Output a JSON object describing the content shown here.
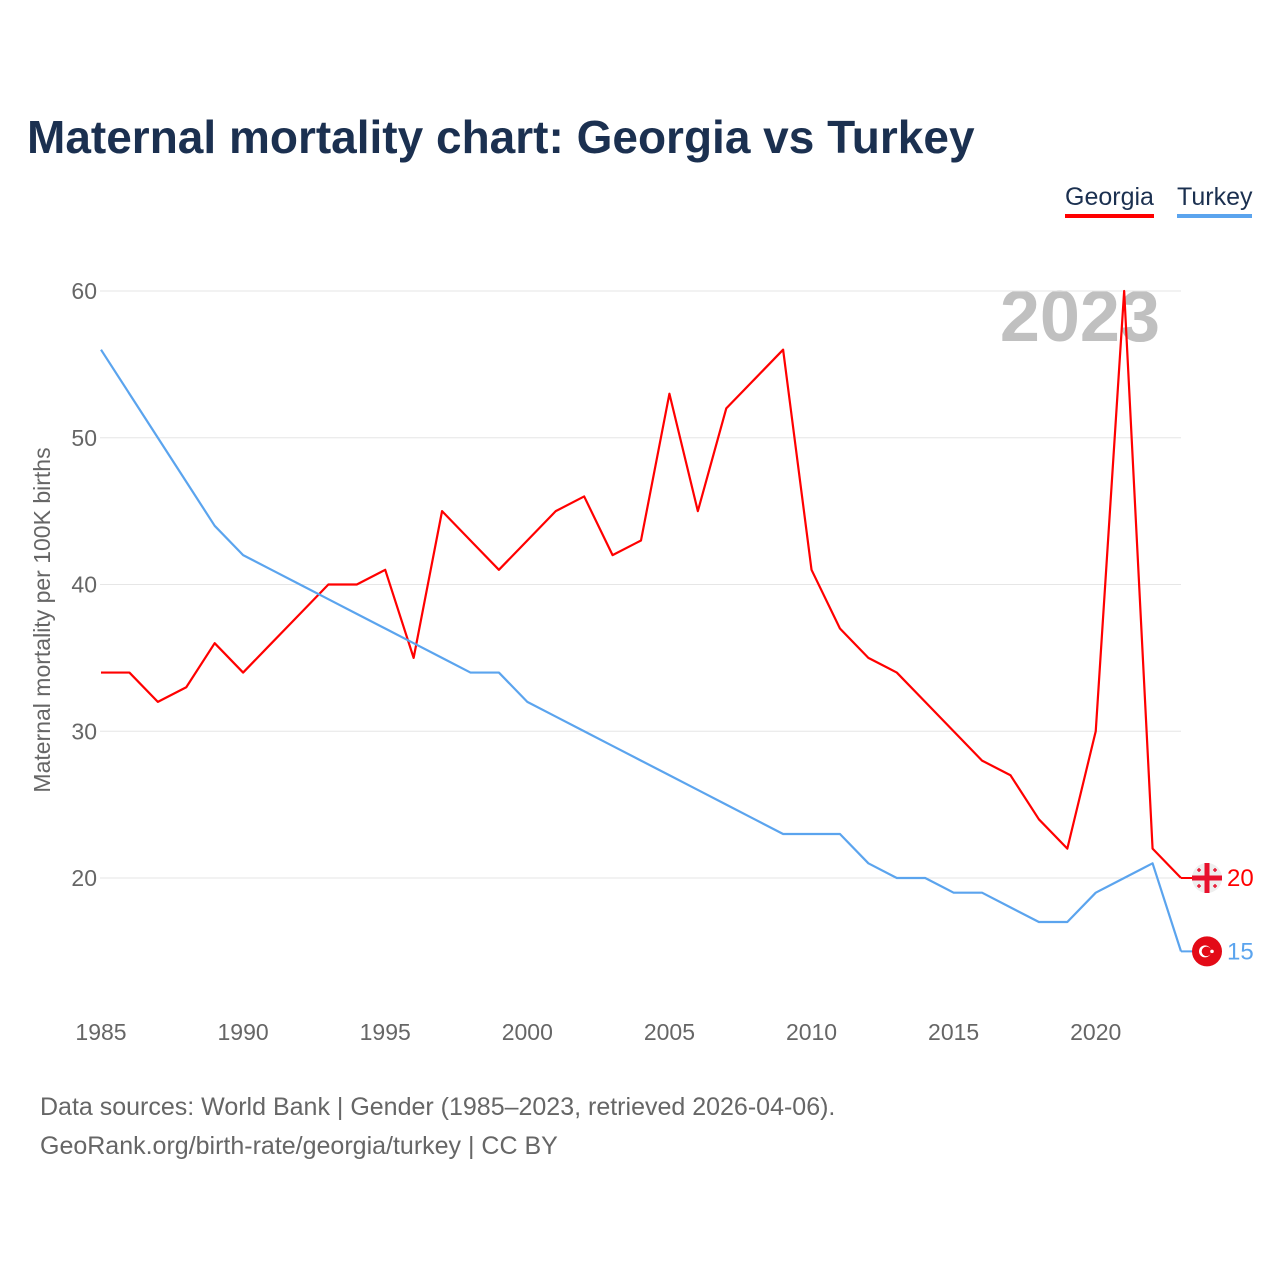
{
  "chart_data": {
    "type": "line",
    "title": "Maternal mortality chart: Georgia vs Turkey",
    "ylabel": "Maternal mortality per 100K births",
    "xlabel": "",
    "ylim": [
      20,
      60
    ],
    "yticks": [
      20,
      30,
      40,
      50,
      60
    ],
    "xticks": [
      1985,
      1990,
      1995,
      2000,
      2005,
      2010,
      2015,
      2020
    ],
    "year_label": "2023",
    "x": [
      1985,
      1986,
      1987,
      1988,
      1989,
      1990,
      1991,
      1992,
      1993,
      1994,
      1995,
      1996,
      1997,
      1998,
      1999,
      2000,
      2001,
      2002,
      2003,
      2004,
      2005,
      2006,
      2007,
      2008,
      2009,
      2010,
      2011,
      2012,
      2013,
      2014,
      2015,
      2016,
      2017,
      2018,
      2019,
      2020,
      2021,
      2022,
      2023
    ],
    "series": [
      {
        "name": "Georgia",
        "color": "#ff0000",
        "end_label": "20",
        "values": [
          34,
          34,
          32,
          33,
          36,
          34,
          36,
          38,
          40,
          40,
          41,
          35,
          45,
          43,
          41,
          43,
          45,
          46,
          42,
          43,
          53,
          45,
          52,
          54,
          56,
          41,
          37,
          35,
          34,
          32,
          30,
          28,
          27,
          24,
          22,
          30,
          60,
          22,
          20
        ]
      },
      {
        "name": "Turkey",
        "color": "#5ba4ee",
        "end_label": "15",
        "values": [
          56,
          53,
          50,
          47,
          44,
          42,
          41,
          40,
          39,
          38,
          37,
          36,
          35,
          34,
          34,
          32,
          31,
          30,
          29,
          28,
          27,
          26,
          25,
          24,
          23,
          23,
          23,
          21,
          20,
          20,
          19,
          19,
          18,
          17,
          17,
          19,
          20,
          21,
          15
        ]
      }
    ],
    "legend": "top-right"
  },
  "footer": {
    "line1": "Data sources: World Bank | Gender (1985–2023, retrieved 2026-04-06).",
    "line2": "GeoRank.org/birth-rate/georgia/turkey | CC BY"
  }
}
